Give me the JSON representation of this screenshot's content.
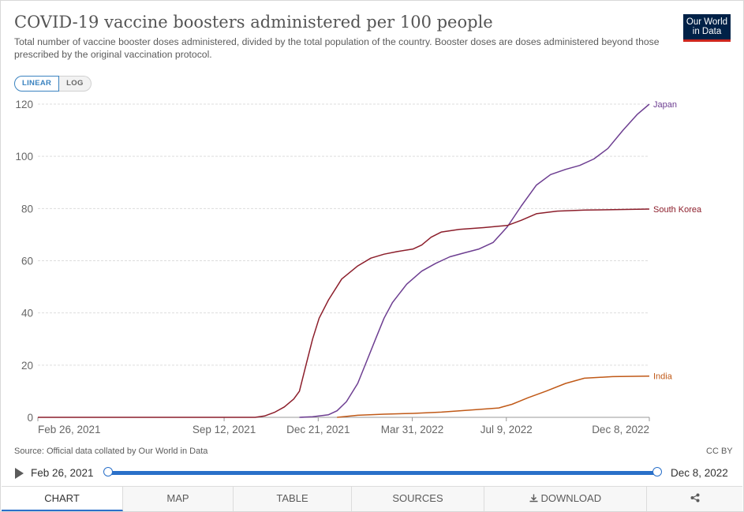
{
  "header": {
    "title": "COVID-19 vaccine boosters administered per 100 people",
    "subtitle": "Total number of vaccine booster doses administered, divided by the total population of the country. Booster doses are doses administered beyond those prescribed by the original vaccination protocol.",
    "logo_line1": "Our World",
    "logo_line2": "in Data"
  },
  "scale_toggle": {
    "linear": "LINEAR",
    "log": "LOG",
    "selected": "LINEAR"
  },
  "colors": {
    "japan": "#6d3e91",
    "south_korea": "#8c1e2b",
    "india": "#c05917",
    "grid": "#dddddd",
    "axis": "#5b5b5b",
    "accent": "#2a70c9"
  },
  "chart_data": {
    "type": "line",
    "x_axis_type": "date",
    "x_range": [
      "2021-02-26",
      "2022-12-08"
    ],
    "x_ticks": [
      {
        "date": "2021-02-26",
        "label": "Feb 26, 2021"
      },
      {
        "date": "2021-09-12",
        "label": "Sep 12, 2021"
      },
      {
        "date": "2021-12-21",
        "label": "Dec 21, 2021"
      },
      {
        "date": "2022-03-31",
        "label": "Mar 31, 2022"
      },
      {
        "date": "2022-07-09",
        "label": "Jul 9, 2022"
      },
      {
        "date": "2022-12-08",
        "label": "Dec 8, 2022"
      }
    ],
    "ylim": [
      0,
      120
    ],
    "y_ticks": [
      0,
      20,
      40,
      60,
      80,
      100,
      120
    ],
    "grid": "horizontal",
    "series": [
      {
        "name": "Japan",
        "color_key": "japan",
        "points": [
          [
            "2021-12-01",
            0
          ],
          [
            "2021-12-15",
            0.2
          ],
          [
            "2022-01-01",
            1
          ],
          [
            "2022-01-10",
            2.5
          ],
          [
            "2022-01-20",
            6
          ],
          [
            "2022-02-01",
            13
          ],
          [
            "2022-02-10",
            21
          ],
          [
            "2022-02-20",
            30
          ],
          [
            "2022-03-01",
            38
          ],
          [
            "2022-03-10",
            44
          ],
          [
            "2022-03-25",
            51
          ],
          [
            "2022-04-10",
            56
          ],
          [
            "2022-04-25",
            59
          ],
          [
            "2022-05-10",
            61.5
          ],
          [
            "2022-05-25",
            63
          ],
          [
            "2022-06-10",
            64.5
          ],
          [
            "2022-06-25",
            67
          ],
          [
            "2022-07-10",
            73
          ],
          [
            "2022-07-25",
            81
          ],
          [
            "2022-08-10",
            89
          ],
          [
            "2022-08-25",
            93
          ],
          [
            "2022-09-10",
            95
          ],
          [
            "2022-09-25",
            96.5
          ],
          [
            "2022-10-10",
            99
          ],
          [
            "2022-10-25",
            103
          ],
          [
            "2022-11-10",
            110
          ],
          [
            "2022-11-25",
            116
          ],
          [
            "2022-12-08",
            120
          ]
        ]
      },
      {
        "name": "South Korea",
        "color_key": "south_korea",
        "points": [
          [
            "2021-02-26",
            0
          ],
          [
            "2021-10-15",
            0
          ],
          [
            "2021-10-25",
            0.5
          ],
          [
            "2021-11-05",
            2
          ],
          [
            "2021-11-15",
            4
          ],
          [
            "2021-11-25",
            7
          ],
          [
            "2021-12-01",
            10
          ],
          [
            "2021-12-08",
            20
          ],
          [
            "2021-12-15",
            30
          ],
          [
            "2021-12-22",
            38
          ],
          [
            "2022-01-01",
            45
          ],
          [
            "2022-01-15",
            53
          ],
          [
            "2022-02-01",
            58
          ],
          [
            "2022-02-15",
            61
          ],
          [
            "2022-03-01",
            62.5
          ],
          [
            "2022-03-15",
            63.5
          ],
          [
            "2022-04-01",
            64.5
          ],
          [
            "2022-04-10",
            66
          ],
          [
            "2022-04-20",
            69
          ],
          [
            "2022-05-01",
            71
          ],
          [
            "2022-05-20",
            72
          ],
          [
            "2022-06-15",
            72.7
          ],
          [
            "2022-07-10",
            73.5
          ],
          [
            "2022-07-25",
            75.5
          ],
          [
            "2022-08-10",
            78
          ],
          [
            "2022-09-01",
            79
          ],
          [
            "2022-10-01",
            79.4
          ],
          [
            "2022-12-08",
            79.8
          ]
        ]
      },
      {
        "name": "India",
        "color_key": "india",
        "points": [
          [
            "2022-01-10",
            0
          ],
          [
            "2022-02-01",
            0.8
          ],
          [
            "2022-03-01",
            1.2
          ],
          [
            "2022-04-01",
            1.5
          ],
          [
            "2022-05-01",
            2
          ],
          [
            "2022-06-01",
            2.8
          ],
          [
            "2022-07-01",
            3.6
          ],
          [
            "2022-07-15",
            5
          ],
          [
            "2022-08-01",
            7.5
          ],
          [
            "2022-08-20",
            10
          ],
          [
            "2022-09-10",
            13
          ],
          [
            "2022-09-30",
            15
          ],
          [
            "2022-10-30",
            15.6
          ],
          [
            "2022-12-08",
            15.8
          ]
        ]
      }
    ]
  },
  "footer": {
    "source": "Source: Official data collated by Our World in Data",
    "license": "CC BY"
  },
  "timeline": {
    "start": "Feb 26, 2021",
    "end": "Dec 8, 2022"
  },
  "tabs": [
    {
      "label": "CHART",
      "icon": "",
      "active": true
    },
    {
      "label": "MAP",
      "icon": ""
    },
    {
      "label": "TABLE",
      "icon": ""
    },
    {
      "label": "SOURCES",
      "icon": ""
    },
    {
      "label": "DOWNLOAD",
      "icon": "download-icon"
    },
    {
      "label": "",
      "icon": "share-icon"
    }
  ]
}
